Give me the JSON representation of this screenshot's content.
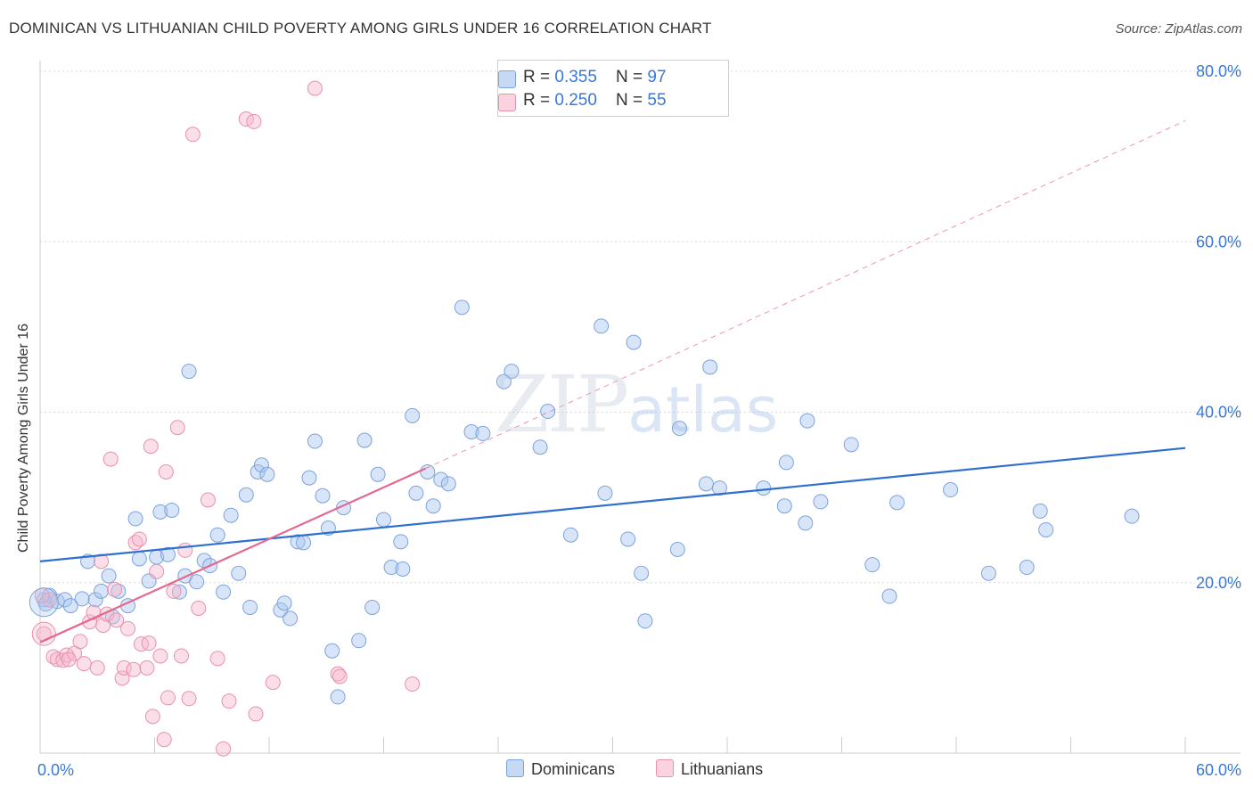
{
  "title": "DOMINICAN VS LITHUANIAN CHILD POVERTY AMONG GIRLS UNDER 16 CORRELATION CHART",
  "source": "Source: ZipAtlas.com",
  "watermark": {
    "zip": "ZIP",
    "atlas": "atlas"
  },
  "legend_top": {
    "rows": [
      {
        "r_label": "R = ",
        "r_value": "0.355",
        "n_label": "N = ",
        "n_value": "97",
        "color": "#a9c6ef"
      },
      {
        "r_label": "R = ",
        "r_value": "0.250",
        "n_label": "N = ",
        "n_value": "55",
        "color": "#f6b8cb"
      }
    ]
  },
  "legend_bottom": [
    {
      "label": "Dominicans",
      "color": "#a9c6ef"
    },
    {
      "label": "Lithuanians",
      "color": "#f6b8cb"
    }
  ],
  "chart_data": {
    "type": "scatter",
    "title": "DOMINICAN VS LITHUANIAN CHILD POVERTY AMONG GIRLS UNDER 16 CORRELATION CHART",
    "xlabel": "",
    "ylabel": "Child Poverty Among Girls Under 16",
    "xlim": [
      0,
      60
    ],
    "ylim": [
      0,
      80
    ],
    "x_tick_labels": [
      "0.0%",
      "60.0%"
    ],
    "y_ticks": [
      20,
      40,
      60,
      80
    ],
    "y_tick_labels": [
      "20.0%",
      "40.0%",
      "60.0%",
      "80.0%"
    ],
    "grid": true,
    "legend_position": "top-center",
    "series": [
      {
        "name": "Dominicans",
        "color": "#a9c6ef",
        "stroke": "#7ba3dc",
        "trend": {
          "x": [
            0,
            60
          ],
          "y": [
            22.5,
            35.8
          ],
          "color": "#2e6fcf"
        },
        "points": [
          [
            0.2,
            18
          ],
          [
            0.3,
            17.5
          ],
          [
            0.5,
            18.5
          ],
          [
            0.9,
            17.8
          ],
          [
            1.3,
            18
          ],
          [
            1.6,
            17.3
          ],
          [
            2.2,
            18.1
          ],
          [
            2.5,
            22.5
          ],
          [
            2.9,
            18
          ],
          [
            3.2,
            19
          ],
          [
            3.6,
            20.8
          ],
          [
            3.8,
            16
          ],
          [
            4.1,
            19
          ],
          [
            4.6,
            17.3
          ],
          [
            5,
            27.5
          ],
          [
            5.2,
            22.8
          ],
          [
            5.7,
            20.2
          ],
          [
            6.1,
            23
          ],
          [
            6.3,
            28.3
          ],
          [
            6.7,
            23.3
          ],
          [
            6.9,
            28.5
          ],
          [
            7.3,
            18.9
          ],
          [
            7.6,
            20.8
          ],
          [
            7.8,
            44.8
          ],
          [
            8.2,
            20.1
          ],
          [
            8.6,
            22.6
          ],
          [
            8.9,
            22
          ],
          [
            9.3,
            25.6
          ],
          [
            9.6,
            18.9
          ],
          [
            10,
            27.9
          ],
          [
            10.4,
            21.1
          ],
          [
            10.8,
            30.3
          ],
          [
            11,
            17.1
          ],
          [
            11.4,
            33
          ],
          [
            11.6,
            33.8
          ],
          [
            11.9,
            32.7
          ],
          [
            12.6,
            16.8
          ],
          [
            12.8,
            17.6
          ],
          [
            13.1,
            15.8
          ],
          [
            13.5,
            24.8
          ],
          [
            13.8,
            24.7
          ],
          [
            14.1,
            32.3
          ],
          [
            14.4,
            36.6
          ],
          [
            14.8,
            30.2
          ],
          [
            15.1,
            26.4
          ],
          [
            15.3,
            12
          ],
          [
            15.6,
            6.6
          ],
          [
            15.9,
            28.8
          ],
          [
            16.7,
            13.2
          ],
          [
            17,
            36.7
          ],
          [
            17.4,
            17.1
          ],
          [
            17.7,
            32.7
          ],
          [
            18,
            27.4
          ],
          [
            18.4,
            21.8
          ],
          [
            18.9,
            24.8
          ],
          [
            19,
            21.6
          ],
          [
            19.5,
            39.6
          ],
          [
            19.7,
            30.5
          ],
          [
            20.3,
            33
          ],
          [
            20.6,
            29
          ],
          [
            21,
            32.1
          ],
          [
            21.4,
            31.6
          ],
          [
            22.1,
            52.3
          ],
          [
            22.6,
            37.7
          ],
          [
            23.2,
            37.5
          ],
          [
            24.3,
            43.6
          ],
          [
            24.7,
            44.8
          ],
          [
            26.2,
            35.9
          ],
          [
            26.6,
            40.1
          ],
          [
            27.8,
            25.6
          ],
          [
            29.4,
            50.1
          ],
          [
            29.6,
            30.5
          ],
          [
            30.8,
            25.1
          ],
          [
            31.1,
            48.2
          ],
          [
            31.5,
            21.1
          ],
          [
            31.7,
            15.5
          ],
          [
            33.4,
            23.9
          ],
          [
            33.5,
            38.1
          ],
          [
            34.9,
            31.6
          ],
          [
            35.1,
            45.3
          ],
          [
            35.6,
            31.1
          ],
          [
            37.9,
            31.1
          ],
          [
            39,
            29
          ],
          [
            39.1,
            34.1
          ],
          [
            40.1,
            27
          ],
          [
            40.2,
            39
          ],
          [
            40.9,
            29.5
          ],
          [
            42.5,
            36.2
          ],
          [
            43.6,
            22.1
          ],
          [
            44.5,
            18.4
          ],
          [
            44.9,
            29.4
          ],
          [
            47.7,
            30.9
          ],
          [
            49.7,
            21.1
          ],
          [
            51.7,
            21.8
          ],
          [
            52.4,
            28.4
          ],
          [
            52.7,
            26.2
          ],
          [
            57.2,
            27.8
          ]
        ]
      },
      {
        "name": "Lithuanians",
        "color": "#f6b8cb",
        "stroke": "#e890ad",
        "trend": {
          "x": [
            0,
            20.2
          ],
          "y": [
            13,
            33.4
          ],
          "color": "#e3698f"
        },
        "trend_extension": {
          "x": [
            20.2,
            60
          ],
          "y": [
            33.4,
            74.2
          ]
        },
        "points": [
          [
            0.2,
            14
          ],
          [
            0.5,
            18
          ],
          [
            0.7,
            11.3
          ],
          [
            0.9,
            11
          ],
          [
            1.2,
            10.9
          ],
          [
            1.4,
            11.5
          ],
          [
            1.8,
            11.7
          ],
          [
            2.1,
            13.1
          ],
          [
            2.3,
            10.5
          ],
          [
            2.6,
            15.4
          ],
          [
            2.8,
            16.5
          ],
          [
            3,
            10
          ],
          [
            3.2,
            22.5
          ],
          [
            3.3,
            15
          ],
          [
            3.5,
            16.3
          ],
          [
            3.7,
            34.5
          ],
          [
            3.9,
            19.2
          ],
          [
            4,
            15.6
          ],
          [
            4.3,
            8.8
          ],
          [
            4.4,
            10
          ],
          [
            4.6,
            14.6
          ],
          [
            4.9,
            9.8
          ],
          [
            5,
            24.7
          ],
          [
            5.2,
            25.1
          ],
          [
            5.3,
            12.8
          ],
          [
            5.6,
            10
          ],
          [
            5.7,
            12.9
          ],
          [
            5.8,
            36
          ],
          [
            5.9,
            4.3
          ],
          [
            6.1,
            21.3
          ],
          [
            6.3,
            11.4
          ],
          [
            6.5,
            1.6
          ],
          [
            6.6,
            33
          ],
          [
            6.7,
            6.5
          ],
          [
            7,
            19
          ],
          [
            7.2,
            38.2
          ],
          [
            7.4,
            11.4
          ],
          [
            7.6,
            23.8
          ],
          [
            7.8,
            6.4
          ],
          [
            8,
            72.6
          ],
          [
            8.3,
            17
          ],
          [
            8.8,
            29.7
          ],
          [
            9.3,
            11.1
          ],
          [
            9.6,
            0.5
          ],
          [
            9.9,
            6.1
          ],
          [
            10.8,
            74.4
          ],
          [
            11.2,
            74.1
          ],
          [
            11.3,
            4.6
          ],
          [
            12.2,
            8.3
          ],
          [
            14.4,
            78
          ],
          [
            15.6,
            9.3
          ],
          [
            15.7,
            9
          ],
          [
            19.5,
            8.1
          ],
          [
            0.1,
            18.5
          ],
          [
            1.5,
            11
          ]
        ]
      }
    ]
  }
}
